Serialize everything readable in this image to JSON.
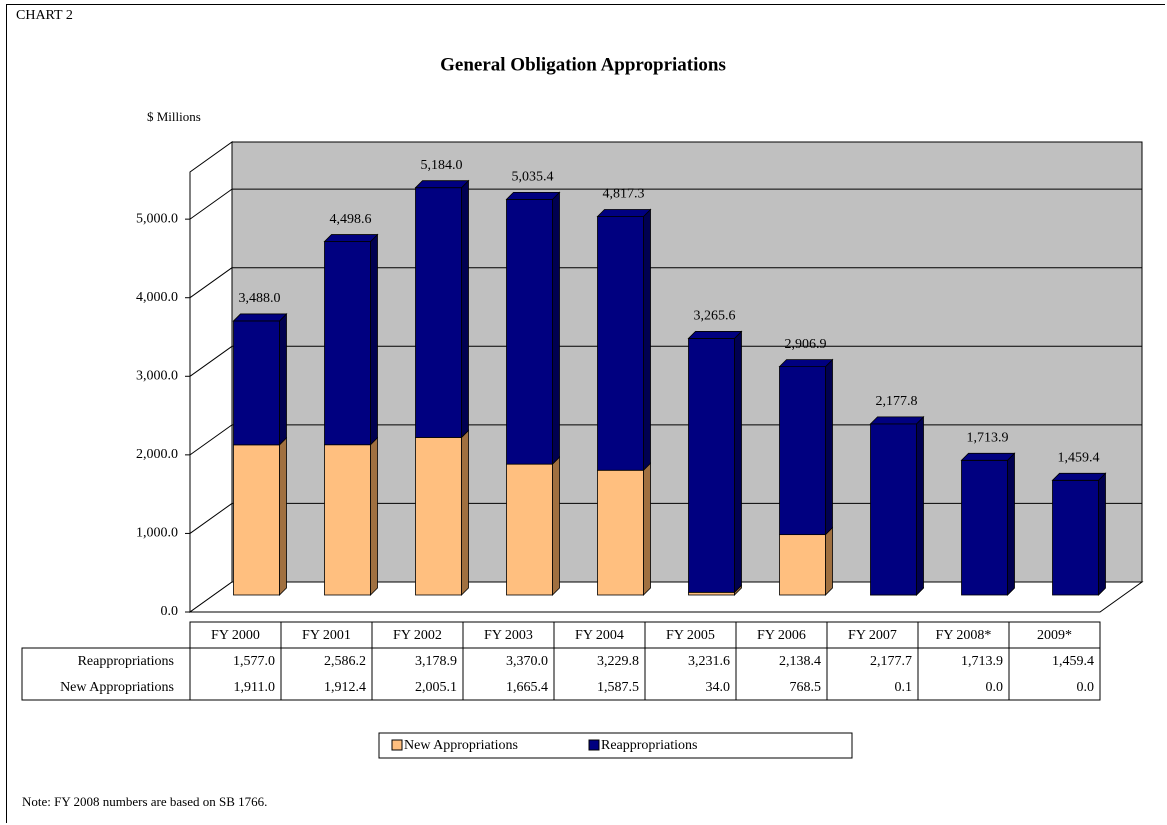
{
  "chart_data": {
    "type": "bar3d_stacked",
    "label": "CHART 2",
    "title": "General Obligation Appropriations",
    "y_axis_label": "$ Millions",
    "note": "Note: FY 2008 numbers are based on SB 1766.",
    "categories": [
      "FY 2000",
      "FY 2001",
      "FY 2002",
      "FY 2003",
      "FY 2004",
      "FY 2005",
      "FY 2006",
      "FY 2007",
      "FY 2008*",
      "2009*"
    ],
    "series": [
      {
        "name": "New Appropriations",
        "color": "#ffbf7f",
        "values": [
          1911.0,
          1912.4,
          2005.1,
          1665.4,
          1587.5,
          34.0,
          768.5,
          0.1,
          0.0,
          0.0
        ],
        "value_labels": [
          "1,911.0",
          "1,912.4",
          "2,005.1",
          "1,665.4",
          "1,587.5",
          "34.0",
          "768.5",
          "0.1",
          "0.0",
          "0.0"
        ]
      },
      {
        "name": "Reappropriations",
        "color": "#000080",
        "values": [
          1577.0,
          2586.2,
          3178.9,
          3370.0,
          3229.8,
          3231.6,
          2138.4,
          2177.7,
          1713.9,
          1459.4
        ],
        "value_labels": [
          "1,577.0",
          "2,586.2",
          "3,178.9",
          "3,370.0",
          "3,229.8",
          "3,231.6",
          "2,138.4",
          "2,177.7",
          "1,713.9",
          "1,459.4"
        ]
      }
    ],
    "total_labels": [
      "3,488.0",
      "4,498.6",
      "5,184.0",
      "5,035.4",
      "4,817.3",
      "3,265.6",
      "2,906.9",
      "2,177.8",
      "1,713.9",
      "1,459.4"
    ],
    "ylim": [
      0,
      5600
    ],
    "yticks": [
      {
        "value": 0,
        "label": "0.0"
      },
      {
        "value": 1000,
        "label": "1,000.0"
      },
      {
        "value": 2000,
        "label": "2,000.0"
      },
      {
        "value": 3000,
        "label": "3,000.0"
      },
      {
        "value": 4000,
        "label": "4,000.0"
      },
      {
        "value": 5000,
        "label": "5,000.0"
      }
    ],
    "grid": true,
    "wall_color": "#c0c0c0"
  }
}
